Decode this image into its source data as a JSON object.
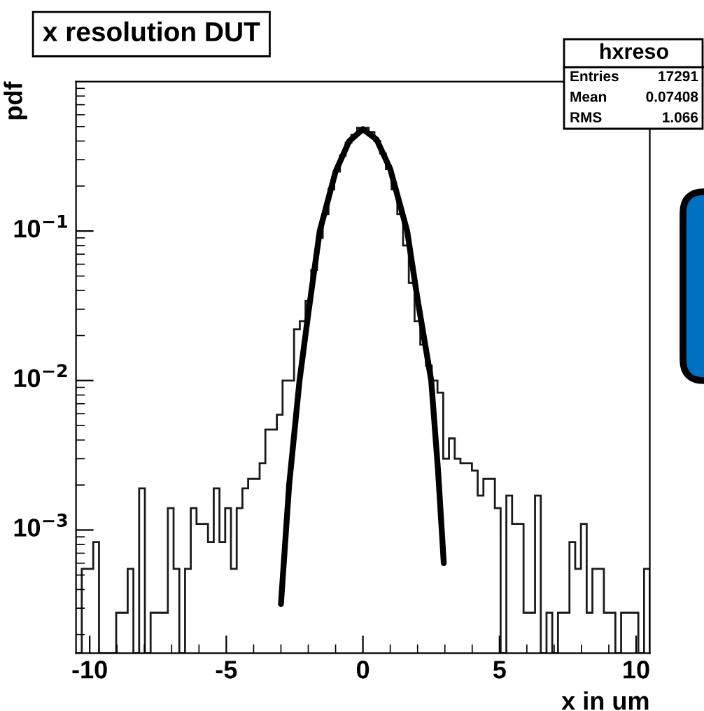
{
  "chart_data": {
    "type": "histogram",
    "title": "x resolution DUT",
    "xlabel": "x in um",
    "ylabel": "pdf",
    "bins": [
      -10.5,
      -10.29,
      -10.08,
      -9.87,
      -9.66,
      -9.45,
      -9.24,
      -9.03,
      -8.82,
      -8.61,
      -8.4,
      -8.19,
      -7.98,
      -7.77,
      -7.56,
      -7.35,
      -7.14,
      -6.93,
      -6.72,
      -6.51,
      -6.3,
      -6.09,
      -5.88,
      -5.67,
      -5.46,
      -5.25,
      -5.04,
      -4.83,
      -4.62,
      -4.41,
      -4.2,
      -3.99,
      -3.78,
      -3.57,
      -3.36,
      -3.15,
      -2.94,
      -2.73,
      -2.52,
      -2.31,
      -2.1,
      -1.89,
      -1.68,
      -1.47,
      -1.26,
      -1.05,
      -0.84,
      -0.63,
      -0.42,
      -0.21,
      0,
      0.21,
      0.42,
      0.63,
      0.84,
      1.05,
      1.26,
      1.47,
      1.68,
      1.89,
      2.1,
      2.31,
      2.52,
      2.73,
      2.94,
      3.15,
      3.36,
      3.57,
      3.78,
      3.99,
      4.2,
      4.41,
      4.62,
      4.83,
      5.04,
      5.25,
      5.46,
      5.67,
      5.88,
      6.09,
      6.3,
      6.51,
      6.72,
      6.93,
      7.14,
      7.35,
      7.56,
      7.77,
      7.98,
      8.19,
      8.4,
      8.61,
      8.82,
      9.03,
      9.24,
      9.45,
      9.66,
      9.87,
      10.08,
      10.29,
      10.5
    ],
    "values": [
      null,
      0.00055,
      0.00055,
      0.00083,
      null,
      null,
      null,
      0.00028,
      0.00028,
      0.00055,
      null,
      0.0019,
      null,
      0.00028,
      0.00028,
      0.00028,
      0.0014,
      0.00055,
      null,
      0.00055,
      0.0014,
      0.0011,
      0.0011,
      0.00083,
      0.0019,
      0.00083,
      0.0014,
      0.00055,
      0.0014,
      0.0019,
      0.0022,
      0.0022,
      0.0028,
      0.0047,
      0.0047,
      0.0059,
      0.01,
      0.01,
      0.022,
      0.025,
      0.034,
      0.055,
      0.09,
      0.13,
      0.19,
      0.25,
      0.32,
      0.39,
      0.44,
      0.49,
      0.49,
      0.46,
      0.4,
      0.33,
      0.26,
      0.19,
      0.13,
      0.08,
      0.045,
      0.025,
      0.0174,
      0.0126,
      0.01,
      0.0083,
      0.003,
      0.0041,
      0.003,
      0.0028,
      0.0028,
      0.0025,
      0.0017,
      0.0022,
      0.0022,
      0.0014,
      null,
      0.0017,
      0.0011,
      0.0011,
      0.00028,
      0.00028,
      0.0017,
      null,
      0.00028,
      null,
      0.00028,
      0.00028,
      0.00083,
      0.00055,
      0.0011,
      0.00028,
      0.00055,
      0.00055,
      0.00028,
      0.00028,
      null,
      0.00028,
      0.00028,
      0.00028,
      null,
      0.00055
    ],
    "color": "#1a1a1a",
    "series": [
      {
        "type": "line",
        "color": "#000000",
        "x": [
          -3.0,
          -2.7,
          -2.32,
          -2.0,
          -1.58,
          -1.0,
          -0.5,
          0,
          0.5,
          1.0,
          1.62,
          2.0,
          2.5,
          2.75,
          2.96
        ],
        "values": [
          0.00032,
          0.002,
          0.01,
          0.028,
          0.1,
          0.25,
          0.4,
          0.48,
          0.41,
          0.26,
          0.1,
          0.035,
          0.01,
          0.0025,
          0.0006
        ]
      }
    ],
    "log": "y",
    "xlim": [
      -10.5,
      10.5
    ],
    "ylim": [
      0.00015,
      1
    ],
    "xticks": [
      -10,
      -5,
      0,
      5,
      10
    ],
    "yticks": [
      {
        "value": 0.001,
        "label": "10$^{−3}$"
      },
      {
        "value": 0.01,
        "label": "10$^{−2}$"
      },
      {
        "value": 0.1,
        "label": "10$^{−1}$"
      }
    ],
    "grid": false,
    "annotations": [
      "hxreso",
      "Entries",
      "17291",
      "Mean",
      "0.07408",
      "RMS",
      "1.066"
    ]
  }
}
